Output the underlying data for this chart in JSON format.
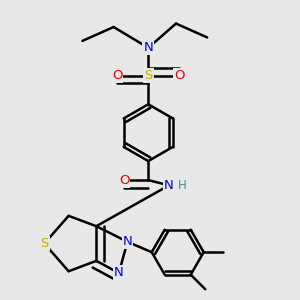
{
  "background_color": "#e8e8e8",
  "atom_colors": {
    "C": "#000000",
    "N": "#0000ee",
    "O": "#ee0000",
    "S": "#ccaa00",
    "H": "#4a9090"
  },
  "bond_color": "#000000",
  "bond_width": 1.8,
  "figsize": [
    3.0,
    3.0
  ],
  "dpi": 100
}
